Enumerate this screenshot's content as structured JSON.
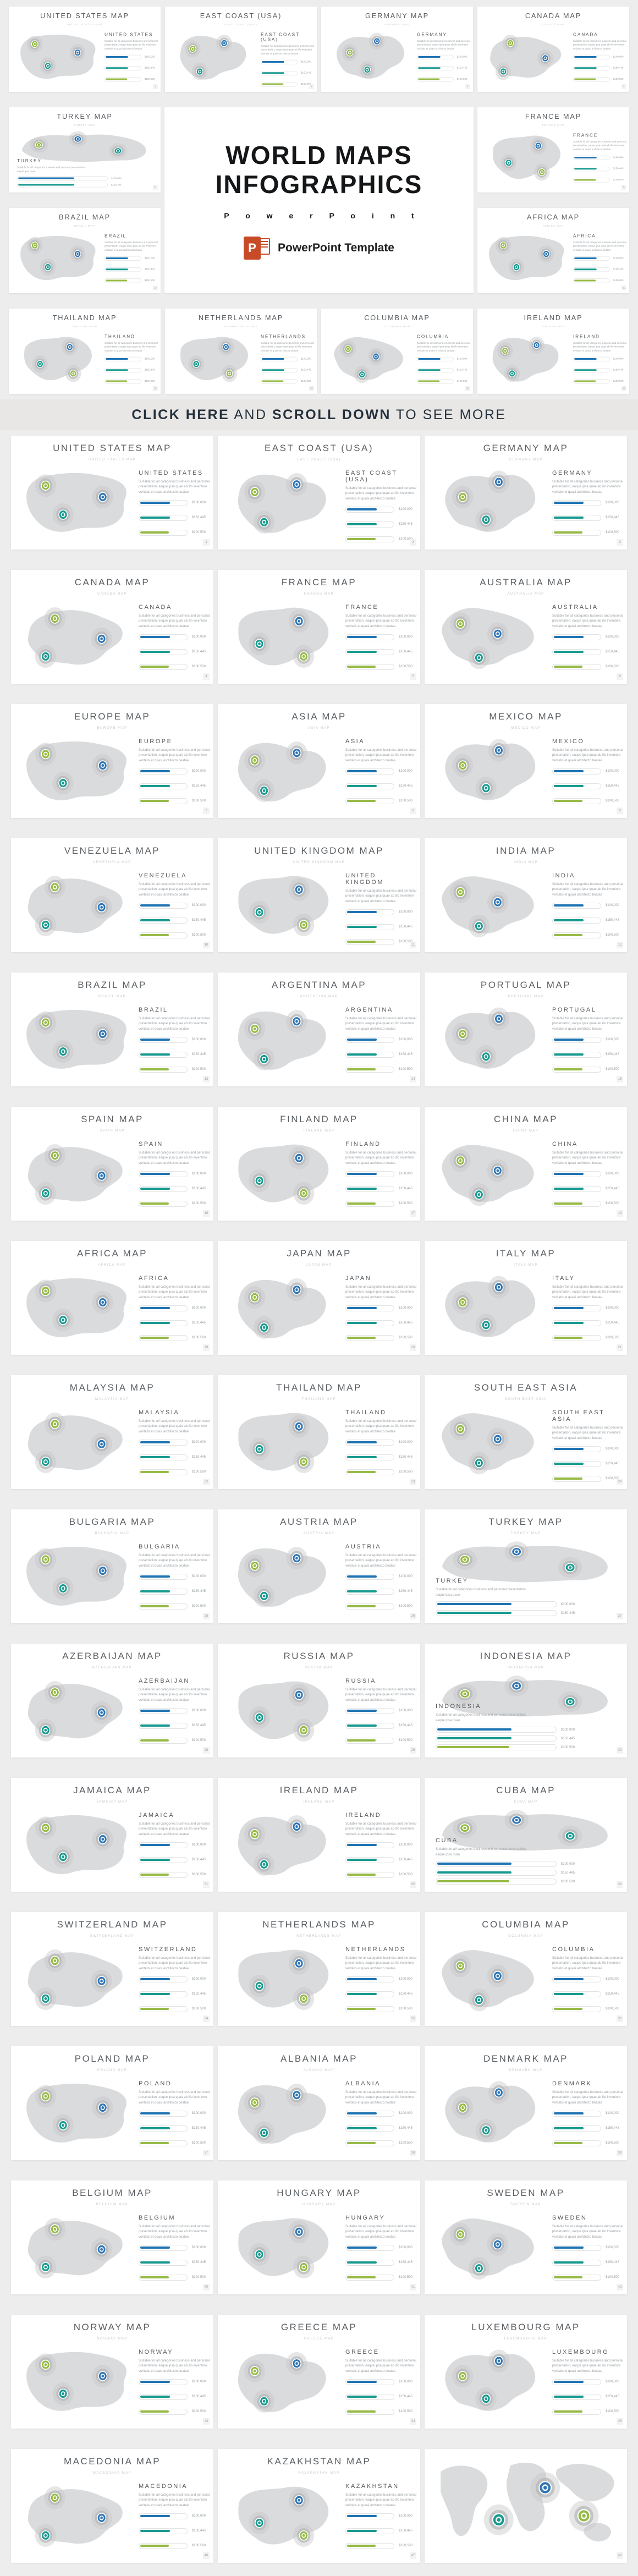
{
  "page_bg": "#ededed",
  "banner": {
    "segments": [
      {
        "text": "CLICK HERE",
        "style": "bold"
      },
      {
        "text": " AND ",
        "style": "regular"
      },
      {
        "text": "SCROLL DOWN",
        "style": "bold"
      },
      {
        "text": " TO SEE MORE",
        "style": "regular"
      }
    ]
  },
  "title_block": {
    "title_line1": "WORLD MAPS",
    "title_line2": "INFOGRAPHICS",
    "subtitle_spaced": "P o w e r P o i n t",
    "logo_letter": "P",
    "logo_label": "PowerPoint Template"
  },
  "colors": {
    "accent_blue": "#1e73b2",
    "accent_teal": "#189a90",
    "accent_green": "#96ba45",
    "banner_text": "#25313d",
    "logo_orange": "#c84b28",
    "map_fill": "#dadbdc"
  },
  "marker_colors": {
    "green": "#96ba45",
    "blue": "#2e75b5",
    "teal": "#189a90"
  },
  "legend": {
    "description_full": "Suitable for all categories business and personal presentation, eaque ipsa quae ab illo inventore veritatis et quasi architecto beatae",
    "description_short": "Suitable for all categories business and personal presentation, eaque ipsa quae",
    "bars": [
      {
        "name": "blue",
        "color": "#1e73b2",
        "label": "$100,000",
        "pct": 62
      },
      {
        "name": "teal",
        "color": "#189a90",
        "label": "$150,445",
        "pct": 62
      },
      {
        "name": "green",
        "color": "#96ba45",
        "label": "$100,500",
        "pct": 60
      }
    ]
  },
  "slides": [
    {
      "title": "UNITED STATES MAP",
      "name": "UNITED STATES",
      "page": "1"
    },
    {
      "title": "EAST COAST (USA)",
      "name": "EAST COAST (USA)",
      "page": "2"
    },
    {
      "title": "GERMANY MAP",
      "name": "GERMANY",
      "page": "3"
    },
    {
      "title": "CANADA MAP",
      "name": "CANADA",
      "page": "4"
    },
    {
      "title": "FRANCE MAP",
      "name": "FRANCE",
      "page": "5"
    },
    {
      "title": "AUSTRALIA MAP",
      "name": "AUSTRALIA",
      "page": "6"
    },
    {
      "title": "EUROPE MAP",
      "name": "EUROPE",
      "page": "7"
    },
    {
      "title": "ASIA MAP",
      "name": "ASIA",
      "page": "8"
    },
    {
      "title": "MEXICO MAP",
      "name": "MEXICO",
      "page": "9"
    },
    {
      "title": "VENEZUELA MAP",
      "name": "VENEZUELA",
      "page": "10"
    },
    {
      "title": "UNITED KINGDOM MAP",
      "name": "UNITED KINGDOM",
      "page": "11"
    },
    {
      "title": "INDIA MAP",
      "name": "INDIA",
      "page": "12"
    },
    {
      "title": "BRAZIL MAP",
      "name": "BRAZIL",
      "page": "13"
    },
    {
      "title": "ARGENTINA MAP",
      "name": "ARGENTINA",
      "page": "14"
    },
    {
      "title": "PORTUGAL MAP",
      "name": "PORTUGAL",
      "page": "15"
    },
    {
      "title": "SPAIN MAP",
      "name": "SPAIN",
      "page": "16"
    },
    {
      "title": "FINLAND MAP",
      "name": "FINLAND",
      "page": "17"
    },
    {
      "title": "CHINA MAP",
      "name": "CHINA",
      "page": "18"
    },
    {
      "title": "AFRICA MAP",
      "name": "AFRICA",
      "page": "19"
    },
    {
      "title": "JAPAN MAP",
      "name": "JAPAN",
      "page": "20"
    },
    {
      "title": "ITALY MAP",
      "name": "ITALY",
      "page": "21"
    },
    {
      "title": "MALAYSIA MAP",
      "name": "MALAYSIA",
      "page": "22"
    },
    {
      "title": "THAILAND MAP",
      "name": "THAILAND",
      "page": "23"
    },
    {
      "title": "SOUTH EAST ASIA",
      "name": "SOUTH EAST ASIA",
      "page": "24"
    },
    {
      "title": "BULGARIA MAP",
      "name": "BULGARIA",
      "page": "25"
    },
    {
      "title": "AUSTRIA MAP",
      "name": "AUSTRIA",
      "page": "26"
    },
    {
      "title": "TURKEY MAP",
      "name": "TURKEY",
      "page": "27",
      "layout": "bottom2"
    },
    {
      "title": "AZERBAIJAN MAP",
      "name": "AZERBAIJAN",
      "page": "28"
    },
    {
      "title": "RUSSIA MAP",
      "name": "RUSSIA",
      "page": "29"
    },
    {
      "title": "INDONESIA MAP",
      "name": "INDONESIA",
      "page": "30",
      "layout": "bottom"
    },
    {
      "title": "JAMAICA MAP",
      "name": "JAMAICA",
      "page": "31"
    },
    {
      "title": "IRELAND MAP",
      "name": "IRELAND",
      "page": "32"
    },
    {
      "title": "CUBA MAP",
      "name": "CUBA",
      "page": "33",
      "layout": "bottom"
    },
    {
      "title": "SWITZERLAND MAP",
      "name": "SWITZERLAND",
      "page": "34"
    },
    {
      "title": "NETHERLANDS MAP",
      "name": "NETHERLANDS",
      "page": "35"
    },
    {
      "title": "COLUMBIA MAP",
      "name": "COLUMBIA",
      "page": "36"
    },
    {
      "title": "POLAND MAP",
      "name": "POLAND",
      "page": "37"
    },
    {
      "title": "ALBANIA MAP",
      "name": "ALBANIA",
      "page": "38"
    },
    {
      "title": "DENMARK MAP",
      "name": "DENMARK",
      "page": "39"
    },
    {
      "title": "BELGIUM MAP",
      "name": "BELGIUM",
      "page": "40"
    },
    {
      "title": "HUNGARY MAP",
      "name": "HUNGARY",
      "page": "41"
    },
    {
      "title": "SWEDEN MAP",
      "name": "SWEDEN",
      "page": "42"
    },
    {
      "title": "NORWAY MAP",
      "name": "NORWAY",
      "page": "43"
    },
    {
      "title": "GREECE MAP",
      "name": "GREECE",
      "page": "44"
    },
    {
      "title": "LUXEMBOURG MAP",
      "name": "LUXEMBOURG",
      "page": "45"
    },
    {
      "title": "MACEDONIA MAP",
      "name": "MACEDONIA",
      "page": "46"
    },
    {
      "title": "KAZAKHSTAN MAP",
      "name": "KAZAKHSTAN",
      "page": "47"
    },
    {
      "title": "",
      "name": "",
      "page": "48",
      "layout": "world"
    }
  ],
  "header_rows": {
    "top": [
      0,
      1,
      2,
      3
    ],
    "mid_left": [
      26,
      12
    ],
    "mid_right": [
      4,
      18
    ],
    "bottom": [
      22,
      34,
      35,
      31
    ]
  }
}
